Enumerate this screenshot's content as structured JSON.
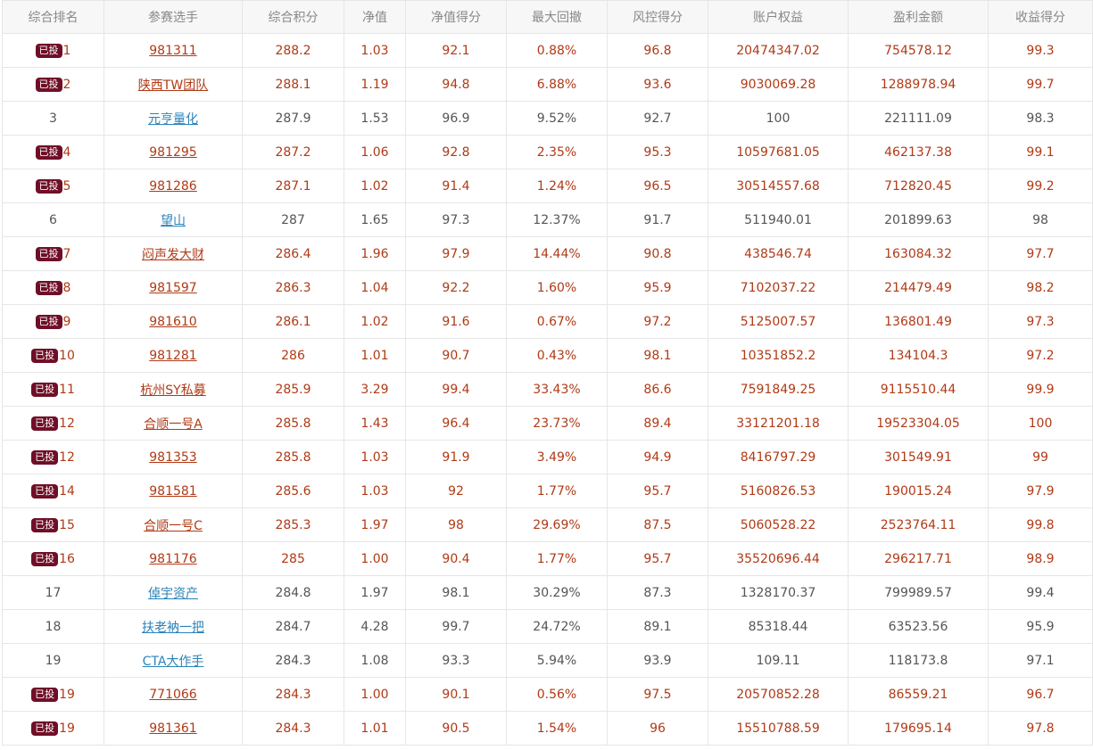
{
  "colors": {
    "invested_text": "#b03a16",
    "normal_text": "#555555",
    "link_blue": "#2a83b8",
    "badge_bg": "#6f0f27",
    "header_bg": "#f7f7f7"
  },
  "headers": [
    "综合排名",
    "参赛选手",
    "综合积分",
    "净值",
    "净值得分",
    "最大回撤",
    "风控得分",
    "账户权益",
    "盈利金额",
    "收益得分"
  ],
  "badge_label": "已投",
  "rows": [
    {
      "invested": true,
      "rank": "1",
      "player": "981311",
      "score": "288.2",
      "nav": "1.03",
      "nav_score": "92.1",
      "max_dd": "0.88%",
      "risk": "96.8",
      "equity": "20474347.02",
      "profit": "754578.12",
      "return_score": "99.3"
    },
    {
      "invested": true,
      "rank": "2",
      "player": "陕西TW团队",
      "score": "288.1",
      "nav": "1.19",
      "nav_score": "94.8",
      "max_dd": "6.88%",
      "risk": "93.6",
      "equity": "9030069.28",
      "profit": "1288978.94",
      "return_score": "99.7"
    },
    {
      "invested": false,
      "rank": "3",
      "player": "元亨量化",
      "score": "287.9",
      "nav": "1.53",
      "nav_score": "96.9",
      "max_dd": "9.52%",
      "risk": "92.7",
      "equity": "100",
      "profit": "221111.09",
      "return_score": "98.3"
    },
    {
      "invested": true,
      "rank": "4",
      "player": "981295",
      "score": "287.2",
      "nav": "1.06",
      "nav_score": "92.8",
      "max_dd": "2.35%",
      "risk": "95.3",
      "equity": "10597681.05",
      "profit": "462137.38",
      "return_score": "99.1"
    },
    {
      "invested": true,
      "rank": "5",
      "player": "981286",
      "score": "287.1",
      "nav": "1.02",
      "nav_score": "91.4",
      "max_dd": "1.24%",
      "risk": "96.5",
      "equity": "30514557.68",
      "profit": "712820.45",
      "return_score": "99.2"
    },
    {
      "invested": false,
      "rank": "6",
      "player": "望山",
      "score": "287",
      "nav": "1.65",
      "nav_score": "97.3",
      "max_dd": "12.37%",
      "risk": "91.7",
      "equity": "511940.01",
      "profit": "201899.63",
      "return_score": "98"
    },
    {
      "invested": true,
      "rank": "7",
      "player": "闷声发大财",
      "score": "286.4",
      "nav": "1.96",
      "nav_score": "97.9",
      "max_dd": "14.44%",
      "risk": "90.8",
      "equity": "438546.74",
      "profit": "163084.32",
      "return_score": "97.7"
    },
    {
      "invested": true,
      "rank": "8",
      "player": "981597",
      "score": "286.3",
      "nav": "1.04",
      "nav_score": "92.2",
      "max_dd": "1.60%",
      "risk": "95.9",
      "equity": "7102037.22",
      "profit": "214479.49",
      "return_score": "98.2"
    },
    {
      "invested": true,
      "rank": "9",
      "player": "981610",
      "score": "286.1",
      "nav": "1.02",
      "nav_score": "91.6",
      "max_dd": "0.67%",
      "risk": "97.2",
      "equity": "5125007.57",
      "profit": "136801.49",
      "return_score": "97.3"
    },
    {
      "invested": true,
      "rank": "10",
      "player": "981281",
      "score": "286",
      "nav": "1.01",
      "nav_score": "90.7",
      "max_dd": "0.43%",
      "risk": "98.1",
      "equity": "10351852.2",
      "profit": "134104.3",
      "return_score": "97.2"
    },
    {
      "invested": true,
      "rank": "11",
      "player": "杭州SY私募",
      "score": "285.9",
      "nav": "3.29",
      "nav_score": "99.4",
      "max_dd": "33.43%",
      "risk": "86.6",
      "equity": "7591849.25",
      "profit": "9115510.44",
      "return_score": "99.9"
    },
    {
      "invested": true,
      "rank": "12",
      "player": "合顺一号A",
      "score": "285.8",
      "nav": "1.43",
      "nav_score": "96.4",
      "max_dd": "23.73%",
      "risk": "89.4",
      "equity": "33121201.18",
      "profit": "19523304.05",
      "return_score": "100"
    },
    {
      "invested": true,
      "rank": "12",
      "player": "981353",
      "score": "285.8",
      "nav": "1.03",
      "nav_score": "91.9",
      "max_dd": "3.49%",
      "risk": "94.9",
      "equity": "8416797.29",
      "profit": "301549.91",
      "return_score": "99"
    },
    {
      "invested": true,
      "rank": "14",
      "player": "981581",
      "score": "285.6",
      "nav": "1.03",
      "nav_score": "92",
      "max_dd": "1.77%",
      "risk": "95.7",
      "equity": "5160826.53",
      "profit": "190015.24",
      "return_score": "97.9"
    },
    {
      "invested": true,
      "rank": "15",
      "player": "合顺一号C",
      "score": "285.3",
      "nav": "1.97",
      "nav_score": "98",
      "max_dd": "29.69%",
      "risk": "87.5",
      "equity": "5060528.22",
      "profit": "2523764.11",
      "return_score": "99.8"
    },
    {
      "invested": true,
      "rank": "16",
      "player": "981176",
      "score": "285",
      "nav": "1.00",
      "nav_score": "90.4",
      "max_dd": "1.77%",
      "risk": "95.7",
      "equity": "35520696.44",
      "profit": "296217.71",
      "return_score": "98.9"
    },
    {
      "invested": false,
      "rank": "17",
      "player": "倬宇资产",
      "score": "284.8",
      "nav": "1.97",
      "nav_score": "98.1",
      "max_dd": "30.29%",
      "risk": "87.3",
      "equity": "1328170.37",
      "profit": "799989.57",
      "return_score": "99.4"
    },
    {
      "invested": false,
      "rank": "18",
      "player": "扶老衲一把",
      "score": "284.7",
      "nav": "4.28",
      "nav_score": "99.7",
      "max_dd": "24.72%",
      "risk": "89.1",
      "equity": "85318.44",
      "profit": "63523.56",
      "return_score": "95.9"
    },
    {
      "invested": false,
      "rank": "19",
      "player": "CTA大作手",
      "score": "284.3",
      "nav": "1.08",
      "nav_score": "93.3",
      "max_dd": "5.94%",
      "risk": "93.9",
      "equity": "109.11",
      "profit": "118173.8",
      "return_score": "97.1"
    },
    {
      "invested": true,
      "rank": "19",
      "player": "771066",
      "score": "284.3",
      "nav": "1.00",
      "nav_score": "90.1",
      "max_dd": "0.56%",
      "risk": "97.5",
      "equity": "20570852.28",
      "profit": "86559.21",
      "return_score": "96.7"
    },
    {
      "invested": true,
      "rank": "19",
      "player": "981361",
      "score": "284.3",
      "nav": "1.01",
      "nav_score": "90.5",
      "max_dd": "1.54%",
      "risk": "96",
      "equity": "15510788.59",
      "profit": "179695.14",
      "return_score": "97.8"
    }
  ]
}
